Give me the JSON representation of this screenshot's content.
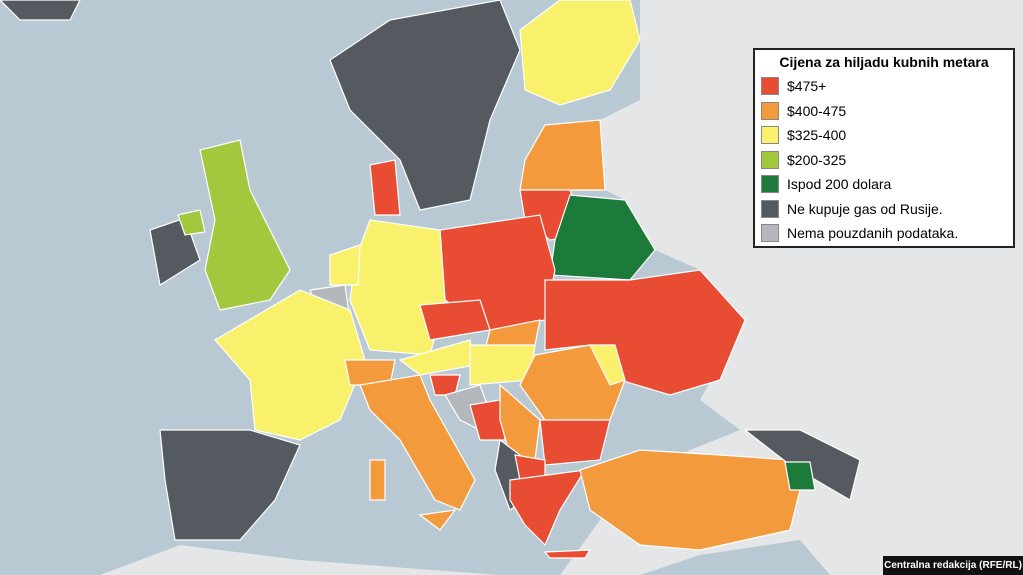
{
  "legend": {
    "title": "Cijena za hiljadu kubnih metara",
    "items": [
      {
        "label": "$475+",
        "color": "#e84c33"
      },
      {
        "label": "$400-475",
        "color": "#f39a3c"
      },
      {
        "label": "$325-400",
        "color": "#f9f06b"
      },
      {
        "label": "$200-325",
        "color": "#a3c83e"
      },
      {
        "label": "Ispod 200 dolara",
        "color": "#1c7a3a"
      },
      {
        "label": "Ne kupuje gas od Rusije.",
        "color": "#555a60"
      },
      {
        "label": "Nema pouzdanih podataka.",
        "color": "#b4b8bc"
      }
    ]
  },
  "credit": "Centralna redakcija (RFE/RL)"
}
